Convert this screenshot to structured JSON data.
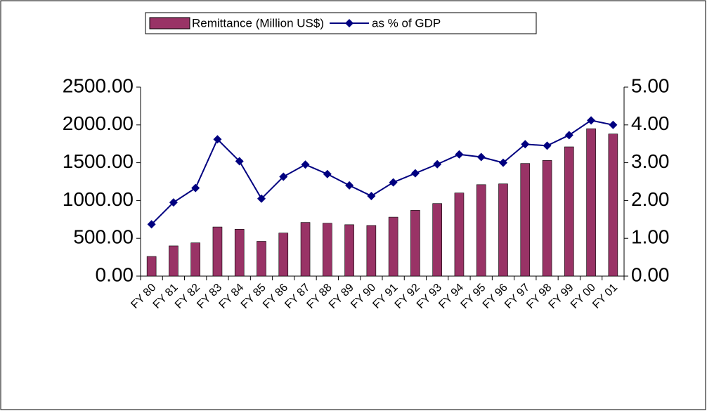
{
  "chart_data": {
    "type": "bar_line",
    "categories": [
      "FY 80",
      "FY 81",
      "FY 82",
      "FY 83",
      "FY 84",
      "FY 85",
      "FY 86",
      "FY 87",
      "FY 88",
      "FY 89",
      "FY 90",
      "FY 91",
      "FY 92",
      "FY 93",
      "FY 94",
      "FY 95",
      "FY 96",
      "FY 97",
      "FY 98",
      "FY 99",
      "FY 00",
      "FY 01"
    ],
    "series": [
      {
        "name": "Remittance (Million US$)",
        "type": "bar",
        "color": "#993366",
        "values": [
          260,
          400,
          440,
          650,
          620,
          460,
          570,
          710,
          700,
          680,
          670,
          780,
          870,
          960,
          1100,
          1210,
          1220,
          1490,
          1530,
          1710,
          1950,
          1880
        ]
      },
      {
        "name": "as % of GDP",
        "type": "line",
        "axis": "y2",
        "color": "#000080",
        "values": [
          1.37,
          1.95,
          2.33,
          3.62,
          3.04,
          2.05,
          2.63,
          2.95,
          2.7,
          2.4,
          2.12,
          2.48,
          2.72,
          2.96,
          3.22,
          3.15,
          3.0,
          3.49,
          3.45,
          3.73,
          4.12,
          4.0
        ]
      }
    ],
    "ylim": [
      0,
      2500
    ],
    "yticks": [
      {
        "value": 0,
        "label": "0.00"
      },
      {
        "value": 500,
        "label": "500.00"
      },
      {
        "value": 1000,
        "label": "1000.00"
      },
      {
        "value": 1500,
        "label": "1500.00"
      },
      {
        "value": 2000,
        "label": "2000.00"
      },
      {
        "value": 2500,
        "label": "2500.00"
      }
    ],
    "y2lim": [
      0,
      5
    ],
    "y2ticks": [
      {
        "value": 0,
        "label": "0.00"
      },
      {
        "value": 1,
        "label": "1.00"
      },
      {
        "value": 2,
        "label": "2.00"
      },
      {
        "value": 3,
        "label": "3.00"
      },
      {
        "value": 4,
        "label": "4.00"
      },
      {
        "value": 5,
        "label": "5.00"
      }
    ],
    "grid": false,
    "legend": "top"
  }
}
